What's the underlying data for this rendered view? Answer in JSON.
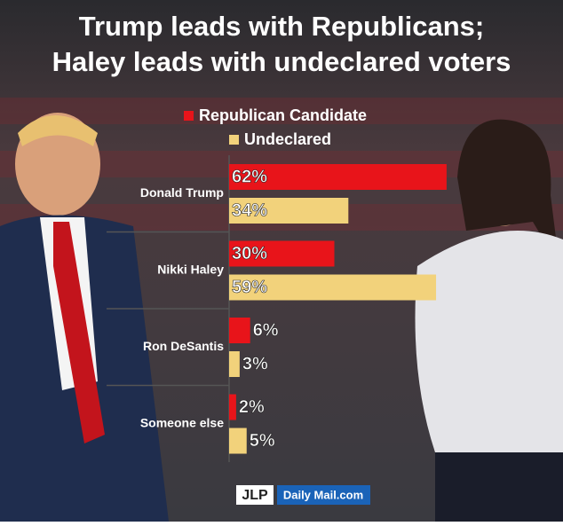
{
  "chart_data": {
    "type": "hbar-grouped",
    "title": [
      "Trump leads with Republicans;",
      "Haley leads with undeclared voters"
    ],
    "categories": [
      "Donald Trump",
      "Nikki Haley",
      "Ron DeSantis",
      "Someone else"
    ],
    "series": [
      {
        "name": "Republican Candidate",
        "color": "#e8141a",
        "values": [
          62,
          30,
          6,
          2
        ],
        "value_labels": [
          "62%",
          "30%",
          "6%",
          "2%"
        ]
      },
      {
        "name": "Undeclared",
        "color": "#f2d27b",
        "values": [
          34,
          59,
          3,
          5
        ],
        "value_labels": [
          "34%",
          "59%",
          "3%",
          "5%"
        ]
      }
    ],
    "credits": [
      "JLP",
      "Daily Mail.com"
    ]
  }
}
